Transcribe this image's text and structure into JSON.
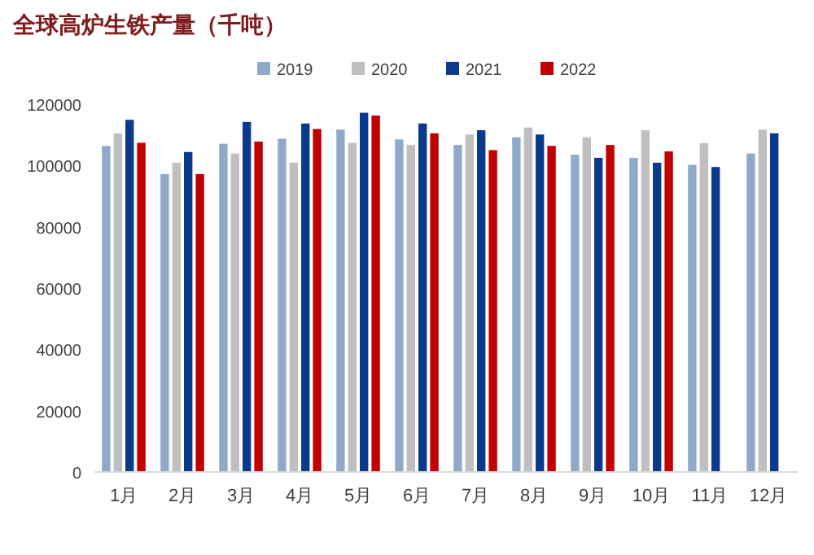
{
  "chart_data": {
    "type": "bar",
    "title": "全球高炉生铁产量（千吨）",
    "categories": [
      "1月",
      "2月",
      "3月",
      "4月",
      "5月",
      "6月",
      "7月",
      "8月",
      "9月",
      "10月",
      "11月",
      "12月"
    ],
    "series": [
      {
        "name": "2019",
        "color": "#8eaacb",
        "values": [
          106400,
          97200,
          107100,
          108700,
          111700,
          108500,
          106700,
          109200,
          103500,
          102500,
          100200,
          103900
        ]
      },
      {
        "name": "2020",
        "color": "#bfbfbf",
        "values": [
          110500,
          100900,
          103900,
          100900,
          107400,
          106700,
          110100,
          112400,
          109200,
          111500,
          107300,
          111700
        ]
      },
      {
        "name": "2021",
        "color": "#0b3a8c",
        "values": [
          114900,
          104400,
          114200,
          113700,
          117200,
          113700,
          111500,
          110100,
          102500,
          100900,
          99500,
          110500
        ]
      },
      {
        "name": "2022",
        "color": "#c00000",
        "values": [
          107400,
          97200,
          107800,
          111900,
          116300,
          110500,
          105000,
          106400,
          106700,
          104600,
          null,
          null
        ]
      }
    ],
    "ylim": [
      0,
      120000
    ],
    "yticks": [
      0,
      20000,
      40000,
      60000,
      80000,
      100000,
      120000
    ],
    "grid": false,
    "legend": "top"
  }
}
